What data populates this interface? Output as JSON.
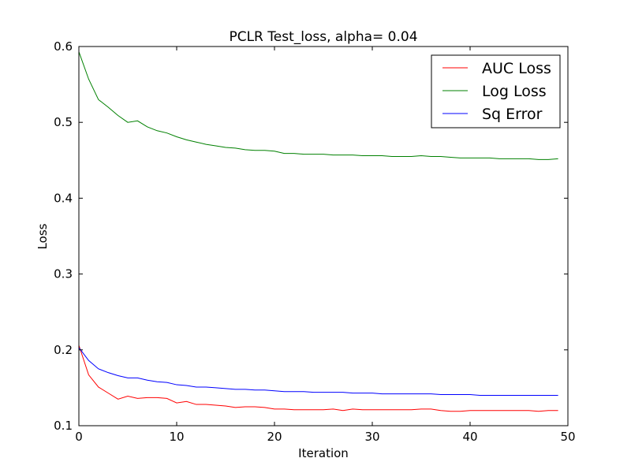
{
  "chart_data": {
    "type": "line",
    "title": "PCLR Test_loss, alpha= 0.04",
    "xlabel": "Iteration",
    "ylabel": "Loss",
    "xlim": [
      0,
      50
    ],
    "ylim": [
      0.1,
      0.6
    ],
    "xticks": [
      0,
      10,
      20,
      30,
      40,
      50
    ],
    "yticks": [
      0.1,
      0.2,
      0.3,
      0.4,
      0.5,
      0.6
    ],
    "xtick_labels": [
      "0",
      "10",
      "20",
      "30",
      "40",
      "50"
    ],
    "ytick_labels": [
      "0.1",
      "0.2",
      "0.3",
      "0.4",
      "0.5",
      "0.6"
    ],
    "grid": false,
    "legend_position": "top-right",
    "x": [
      0,
      1,
      2,
      3,
      4,
      5,
      6,
      7,
      8,
      9,
      10,
      11,
      12,
      13,
      14,
      15,
      16,
      17,
      18,
      19,
      20,
      21,
      22,
      23,
      24,
      25,
      26,
      27,
      28,
      29,
      30,
      31,
      32,
      33,
      34,
      35,
      36,
      37,
      38,
      39,
      40,
      41,
      42,
      43,
      44,
      45,
      46,
      47,
      48,
      49
    ],
    "series": [
      {
        "name": "AUC Loss",
        "color": "#ff0000",
        "values": [
          0.206,
          0.167,
          0.151,
          0.143,
          0.135,
          0.139,
          0.136,
          0.137,
          0.137,
          0.136,
          0.13,
          0.132,
          0.128,
          0.128,
          0.127,
          0.126,
          0.124,
          0.125,
          0.125,
          0.124,
          0.122,
          0.122,
          0.121,
          0.121,
          0.121,
          0.121,
          0.122,
          0.12,
          0.122,
          0.121,
          0.121,
          0.121,
          0.121,
          0.121,
          0.121,
          0.122,
          0.122,
          0.12,
          0.119,
          0.119,
          0.12,
          0.12,
          0.12,
          0.12,
          0.12,
          0.12,
          0.12,
          0.119,
          0.12,
          0.12
        ]
      },
      {
        "name": "Log Loss",
        "color": "#008000",
        "values": [
          0.593,
          0.557,
          0.53,
          0.52,
          0.509,
          0.5,
          0.502,
          0.494,
          0.489,
          0.486,
          0.481,
          0.477,
          0.474,
          0.471,
          0.469,
          0.467,
          0.466,
          0.464,
          0.463,
          0.463,
          0.462,
          0.459,
          0.459,
          0.458,
          0.458,
          0.458,
          0.457,
          0.457,
          0.457,
          0.456,
          0.456,
          0.456,
          0.455,
          0.455,
          0.455,
          0.456,
          0.455,
          0.455,
          0.454,
          0.453,
          0.453,
          0.453,
          0.453,
          0.452,
          0.452,
          0.452,
          0.452,
          0.451,
          0.451,
          0.452
        ]
      },
      {
        "name": "Sq Error",
        "color": "#0000ff",
        "values": [
          0.203,
          0.186,
          0.175,
          0.17,
          0.166,
          0.163,
          0.163,
          0.16,
          0.158,
          0.157,
          0.154,
          0.153,
          0.151,
          0.151,
          0.15,
          0.149,
          0.148,
          0.148,
          0.147,
          0.147,
          0.146,
          0.145,
          0.145,
          0.145,
          0.144,
          0.144,
          0.144,
          0.144,
          0.143,
          0.143,
          0.143,
          0.142,
          0.142,
          0.142,
          0.142,
          0.142,
          0.142,
          0.141,
          0.141,
          0.141,
          0.141,
          0.14,
          0.14,
          0.14,
          0.14,
          0.14,
          0.14,
          0.14,
          0.14,
          0.14
        ]
      }
    ]
  }
}
